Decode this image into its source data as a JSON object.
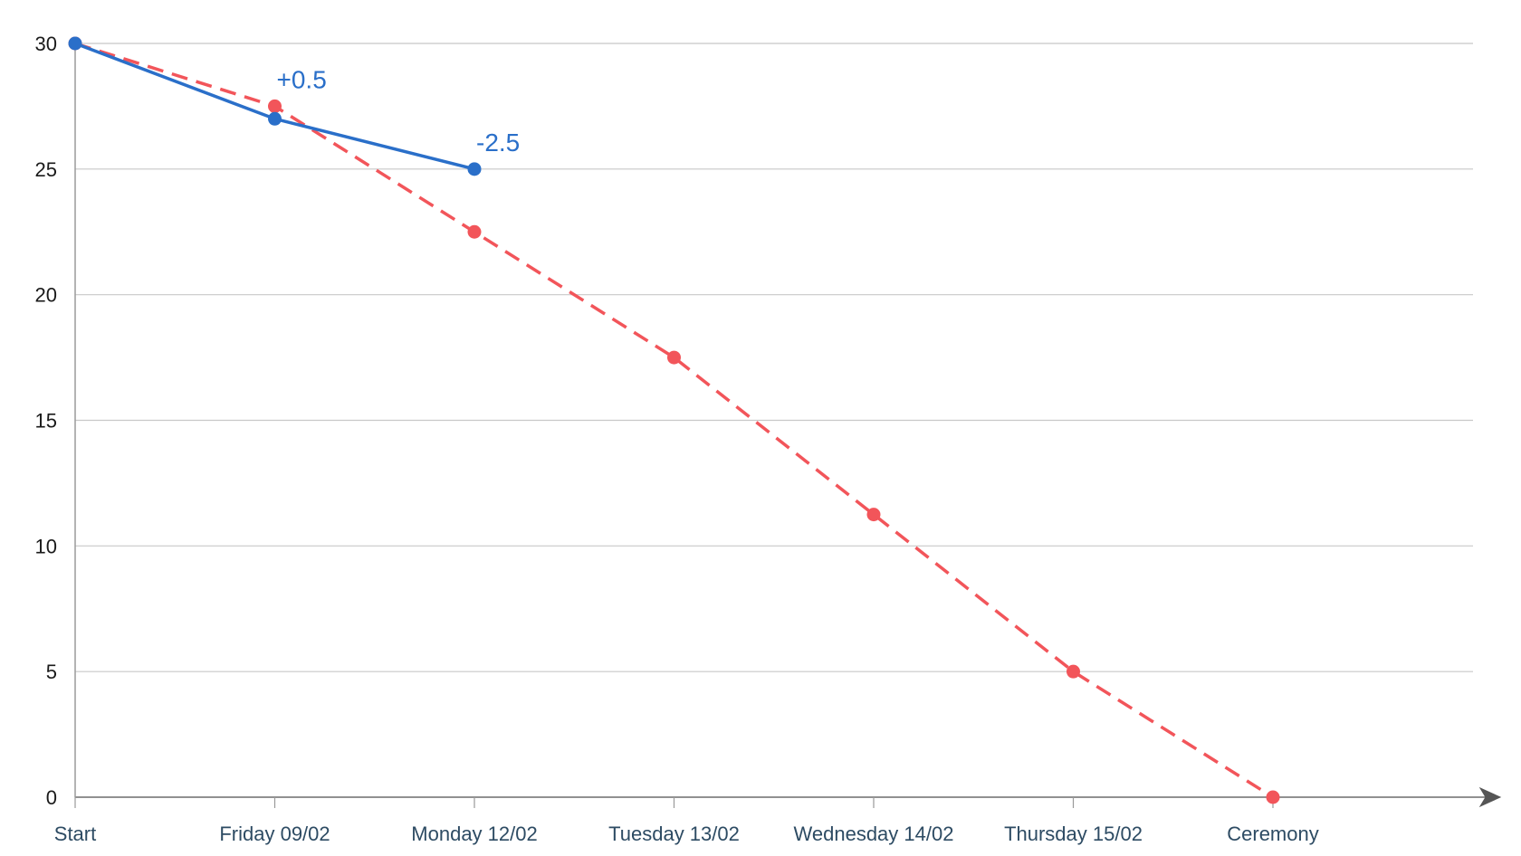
{
  "chart_data": {
    "type": "line",
    "categories": [
      "Start",
      "Friday 09/02",
      "Monday 12/02",
      "Tuesday 13/02",
      "Wednesday 14/02",
      "Thursday 15/02",
      "Ceremony"
    ],
    "series": [
      {
        "key": "actual",
        "values": [
          30,
          27,
          25,
          null,
          null,
          null,
          null
        ],
        "color": "#2a6fc9",
        "style": "solid"
      },
      {
        "key": "ideal",
        "values": [
          30,
          27.5,
          22.5,
          17.5,
          11.25,
          5,
          0
        ],
        "color": "#f2555a",
        "style": "dashed"
      }
    ],
    "data_labels": [
      {
        "category_index": 1,
        "text": "+0.5",
        "series": "actual"
      },
      {
        "category_index": 2,
        "text": "-2.5",
        "series": "actual"
      }
    ],
    "yticks": [
      "0",
      "5",
      "10",
      "15",
      "20",
      "25",
      "30"
    ],
    "ylim": [
      0,
      30
    ],
    "grid": "horizontal",
    "x_axis_arrow": true
  }
}
